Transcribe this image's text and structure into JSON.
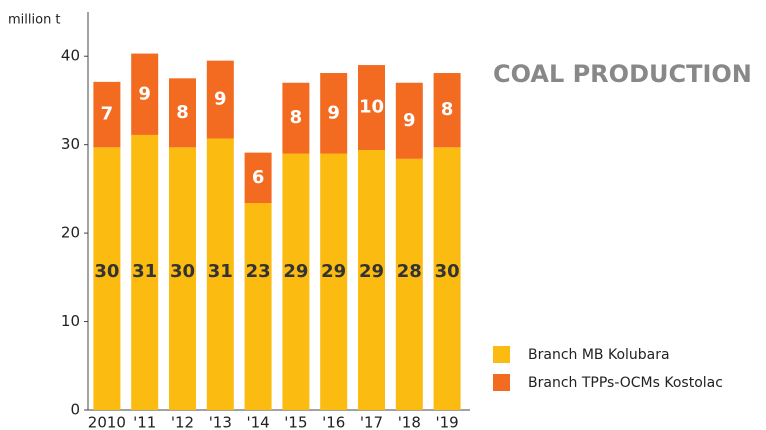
{
  "chart_data": {
    "type": "stacked-bar",
    "title": "COAL PRODUCTION",
    "y_axis_label": "million t",
    "categories": [
      "2010",
      "'11",
      "'12",
      "'13",
      "'14",
      "'15",
      "'16",
      "'17",
      "'18",
      "'19"
    ],
    "series": [
      {
        "name": "Branch MB Kolubara",
        "color": "#fbbb10",
        "values": [
          29.7,
          31.1,
          29.7,
          30.7,
          23.4,
          29.0,
          29.0,
          29.4,
          28.4,
          29.7
        ],
        "value_labels": [
          "30",
          "31",
          "30",
          "31",
          "23",
          "29",
          "29",
          "29",
          "28",
          "30"
        ]
      },
      {
        "name": "Branch TPPs-OCMs Kostolac",
        "color": "#f26b21",
        "values": [
          7.4,
          9.2,
          7.8,
          8.8,
          5.7,
          8.0,
          9.1,
          9.6,
          8.6,
          8.4
        ],
        "value_labels": [
          "7",
          "9",
          "8",
          "9",
          "6",
          "8",
          "9",
          "10",
          "9",
          "8"
        ]
      }
    ],
    "ylim": [
      0,
      45
    ],
    "yticks": [
      0,
      10,
      20,
      30,
      40
    ],
    "grid": false
  }
}
